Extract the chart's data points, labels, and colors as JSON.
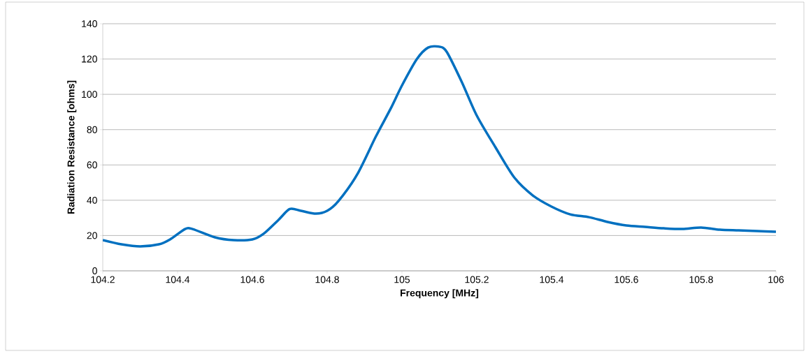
{
  "chart_data": {
    "type": "line",
    "xlabel": "Frequency [MHz]",
    "ylabel": "Radiation Resistance [ohms]",
    "xlim": [
      104.2,
      106
    ],
    "xticks": [
      104.2,
      104.4,
      104.6,
      104.8,
      105,
      105.2,
      105.4,
      105.6,
      105.8,
      106
    ],
    "ylim": [
      0,
      140
    ],
    "yticks": [
      0,
      20,
      40,
      60,
      80,
      100,
      120,
      140
    ],
    "grid": "y",
    "marker": "none",
    "line_style": "solid",
    "series": [
      {
        "color": "#0070c0",
        "x": [
          104.2,
          104.25,
          104.3,
          104.35,
          104.38,
          104.42,
          104.44,
          104.5,
          104.55,
          104.6,
          104.63,
          104.67,
          104.7,
          104.73,
          104.77,
          104.8,
          104.83,
          104.88,
          104.93,
          104.97,
          105.0,
          105.04,
          105.07,
          105.1,
          105.12,
          105.16,
          105.2,
          105.25,
          105.3,
          105.35,
          105.4,
          105.45,
          105.5,
          105.55,
          105.6,
          105.65,
          105.7,
          105.75,
          105.8,
          105.85,
          105.9,
          105.95,
          106
        ],
        "values": [
          17.4,
          15,
          13.8,
          15,
          17.8,
          23.7,
          23.7,
          19,
          17.4,
          17.8,
          21,
          28.9,
          35,
          34,
          32.4,
          34,
          39.5,
          54.5,
          76,
          92,
          105,
          120,
          126.5,
          127,
          124,
          107,
          88,
          70,
          53,
          42.7,
          36.4,
          32,
          30.4,
          27.7,
          25.7,
          24.9,
          24.1,
          23.7,
          24.5,
          23.3,
          22.9,
          22.5,
          22.1
        ]
      }
    ]
  }
}
